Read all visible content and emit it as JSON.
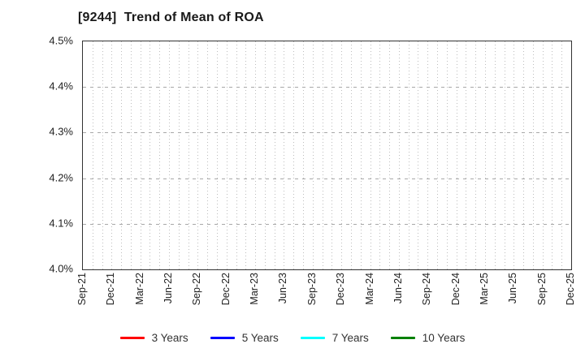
{
  "page": {
    "background": "#ffffff"
  },
  "header": {
    "title": "[9244]  Trend of Mean of ROA"
  },
  "chart_data": {
    "type": "line",
    "title": "[9244]  Trend of Mean of ROA",
    "x_tick_labels": [
      "Sep-21",
      "Dec-21",
      "Mar-22",
      "Jun-22",
      "Sep-22",
      "Dec-22",
      "Mar-23",
      "Jun-23",
      "Sep-23",
      "Dec-23",
      "Mar-24",
      "Jun-24",
      "Sep-24",
      "Dec-24",
      "Mar-25",
      "Jun-25",
      "Sep-25",
      "Dec-25"
    ],
    "x_month_tick_count": 52,
    "y_tick_labels": [
      "4.5%",
      "4.4%",
      "4.3%",
      "4.2%",
      "4.1%",
      "4.0%"
    ],
    "ylim": [
      4.0,
      4.5
    ],
    "y_unit": "%",
    "grid": {
      "vertical": "dotted, monthly",
      "horizontal": "dashed, every 0.1%"
    },
    "legend_position": "bottom-center",
    "series": [
      {
        "name": "3 Years",
        "color": "#ff0000",
        "values": []
      },
      {
        "name": "5 Years",
        "color": "#0000ff",
        "values": []
      },
      {
        "name": "7 Years",
        "color": "#00ffff",
        "values": []
      },
      {
        "name": "10 Years",
        "color": "#008000",
        "values": []
      }
    ],
    "colors": {
      "axis_border": "#333333",
      "grid_vertical": "#bdbdbd",
      "grid_horizontal": "#a8a8a8",
      "tick_text": "#222222",
      "title_text": "#1a1a1a"
    }
  }
}
